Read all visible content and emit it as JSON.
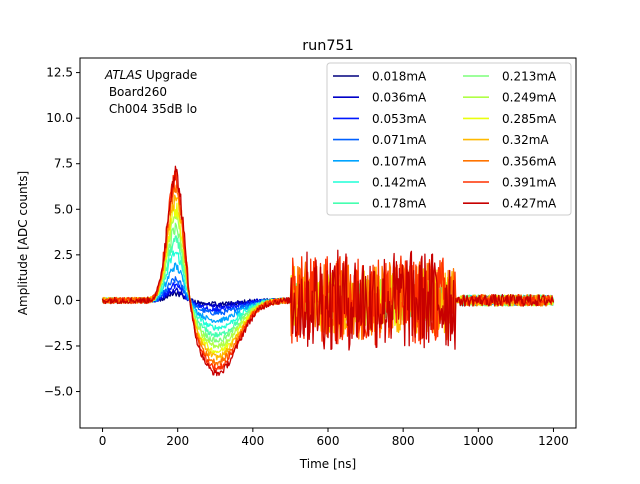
{
  "chart_data": {
    "type": "line",
    "title": "run751",
    "xlabel": "Time [ns]",
    "ylabel": "Amplitude [ADC counts]",
    "xlim": [
      -60,
      1260
    ],
    "ylim": [
      -7.0,
      13.3
    ],
    "xticks": [
      0,
      200,
      400,
      600,
      800,
      1000,
      1200
    ],
    "xtick_labels": [
      "0",
      "200",
      "400",
      "600",
      "800",
      "1000",
      "1200"
    ],
    "yticks": [
      -5.0,
      -2.5,
      0.0,
      2.5,
      5.0,
      7.5,
      10.0,
      12.5
    ],
    "ytick_labels": [
      "−5.0",
      "−2.5",
      "0.0",
      "2.5",
      "5.0",
      "7.5",
      "10.0",
      "12.5"
    ],
    "grid": false,
    "legend_position": "top-right",
    "legend_columns": 2,
    "annotation": {
      "experiment": "ATLAS",
      "suffix": " Upgrade",
      "line2": " Board260",
      "line3": " Ch004 35dB lo"
    },
    "series": [
      {
        "name": "0.018mA",
        "color": "#00007f",
        "peak": 0.4,
        "trough": -0.2,
        "noise": 0.5
      },
      {
        "name": "0.036mA",
        "color": "#0000c8",
        "peak": 0.6,
        "trough": -0.3,
        "noise": 0.5
      },
      {
        "name": "0.053mA",
        "color": "#0018ff",
        "peak": 0.9,
        "trough": -0.5,
        "noise": 0.6
      },
      {
        "name": "0.071mA",
        "color": "#0060ff",
        "peak": 1.2,
        "trough": -0.7,
        "noise": 0.6
      },
      {
        "name": "0.107mA",
        "color": "#00a4ff",
        "peak": 2.0,
        "trough": -1.1,
        "noise": 0.7
      },
      {
        "name": "0.142mA",
        "color": "#1fffd7",
        "peak": 2.8,
        "trough": -1.5,
        "noise": 0.7
      },
      {
        "name": "0.178mA",
        "color": "#46ffb0",
        "peak": 3.5,
        "trough": -1.9,
        "noise": 0.8
      },
      {
        "name": "0.213mA",
        "color": "#7dff7a",
        "peak": 4.2,
        "trough": -2.2,
        "noise": 0.9
      },
      {
        "name": "0.249mA",
        "color": "#b0ff46",
        "peak": 4.8,
        "trough": -2.5,
        "noise": 1.0
      },
      {
        "name": "0.285mA",
        "color": "#eaff0d",
        "peak": 5.4,
        "trough": -2.8,
        "noise": 1.3
      },
      {
        "name": "0.32mA",
        "color": "#ffb900",
        "peak": 6.0,
        "trough": -3.1,
        "noise": 1.7
      },
      {
        "name": "0.356mA",
        "color": "#ff7300",
        "peak": 6.6,
        "trough": -3.4,
        "noise": 2.0
      },
      {
        "name": "0.391mA",
        "color": "#ff3000",
        "peak": 7.1,
        "trough": -3.7,
        "noise": 2.3
      },
      {
        "name": "0.427mA",
        "color": "#c80000",
        "peak": 7.5,
        "trough": -4.0,
        "noise": 2.6
      }
    ]
  }
}
